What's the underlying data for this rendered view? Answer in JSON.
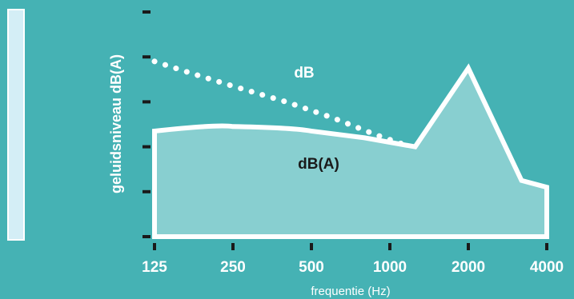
{
  "colors": {
    "background": "#45b2b4",
    "area_fill": "#88cfd0",
    "line": "#ffffff",
    "sidebar_fill": "#d4eef6",
    "axis_tick": "#1a1a1a"
  },
  "chart_data": {
    "type": "area",
    "title": "",
    "xlabel": "frequentie (Hz)",
    "ylabel": "geluidsniveau dB(A)",
    "x_ticks": [
      "125",
      "250",
      "500",
      "1000",
      "2000",
      "4000"
    ],
    "x_scale": "log2",
    "y_tick_count": 6,
    "y_tick_labels_shown": false,
    "grid": false,
    "annotations": {
      "db_label": "dB",
      "dba_label": "dB(A)"
    },
    "series": [
      {
        "name": "dB",
        "style": "dotted",
        "x": [
          125,
          170,
          250,
          400,
          600,
          900,
          1200
        ],
        "y": [
          78,
          73,
          67,
          60,
          53,
          45,
          40
        ]
      },
      {
        "name": "dB(A)",
        "style": "filled-area",
        "x": [
          125,
          250,
          500,
          800,
          1250,
          2000,
          3200,
          4000
        ],
        "y": [
          47,
          49,
          47,
          44,
          40,
          75,
          25,
          22
        ]
      }
    ]
  }
}
